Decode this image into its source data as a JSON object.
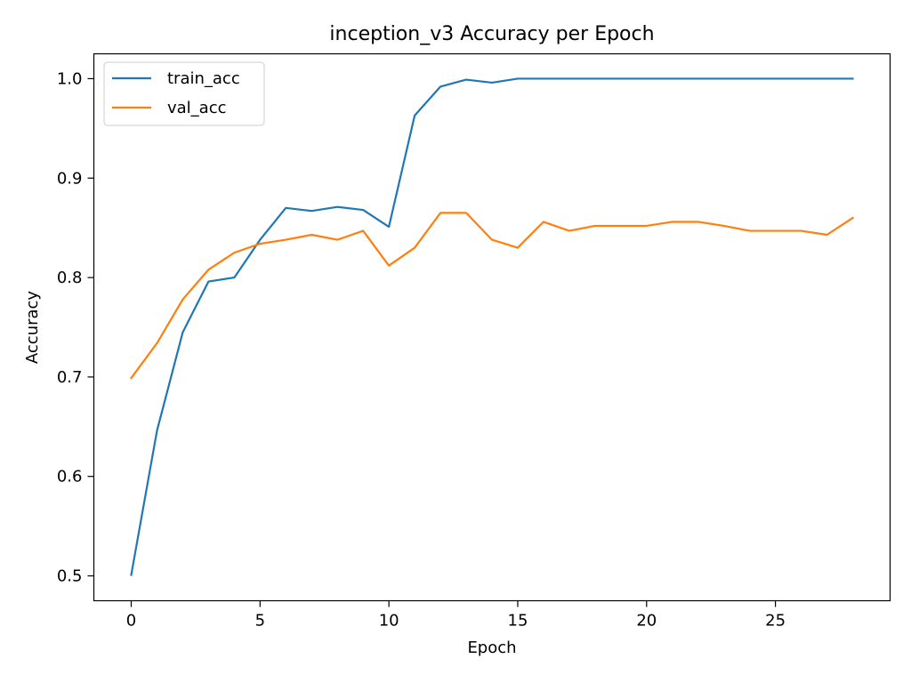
{
  "chart_data": {
    "type": "line",
    "title": "inception_v3 Accuracy per Epoch",
    "xlabel": "Epoch",
    "ylabel": "Accuracy",
    "xlim": [
      -1.45,
      29.45
    ],
    "ylim": [
      0.475,
      1.025
    ],
    "xticks": [
      0,
      5,
      10,
      15,
      20,
      25
    ],
    "yticks": [
      0.5,
      0.6,
      0.7,
      0.8,
      0.9,
      1.0
    ],
    "xtick_labels": [
      "0",
      "5",
      "10",
      "15",
      "20",
      "25"
    ],
    "ytick_labels": [
      "0.5",
      "0.6",
      "0.7",
      "0.8",
      "0.9",
      "1.0"
    ],
    "grid": false,
    "legend_position": "upper-left",
    "x": [
      0,
      1,
      2,
      3,
      4,
      5,
      6,
      7,
      8,
      9,
      10,
      11,
      12,
      13,
      14,
      15,
      16,
      17,
      18,
      19,
      20,
      21,
      22,
      23,
      24,
      25,
      26,
      27,
      28
    ],
    "series": [
      {
        "name": "train_acc",
        "color": "#1f77b4",
        "values": [
          0.501,
          0.646,
          0.745,
          0.796,
          0.8,
          0.838,
          0.87,
          0.867,
          0.871,
          0.868,
          0.851,
          0.963,
          0.992,
          0.999,
          0.996,
          1.0,
          1.0,
          1.0,
          1.0,
          1.0,
          1.0,
          1.0,
          1.0,
          1.0,
          1.0,
          1.0,
          1.0,
          1.0,
          1.0
        ]
      },
      {
        "name": "val_acc",
        "color": "#ff7f0e",
        "values": [
          0.699,
          0.734,
          0.778,
          0.808,
          0.825,
          0.834,
          0.838,
          0.843,
          0.838,
          0.847,
          0.812,
          0.83,
          0.865,
          0.865,
          0.838,
          0.83,
          0.856,
          0.847,
          0.852,
          0.852,
          0.852,
          0.856,
          0.856,
          0.852,
          0.847,
          0.847,
          0.847,
          0.843,
          0.86
        ]
      }
    ]
  }
}
